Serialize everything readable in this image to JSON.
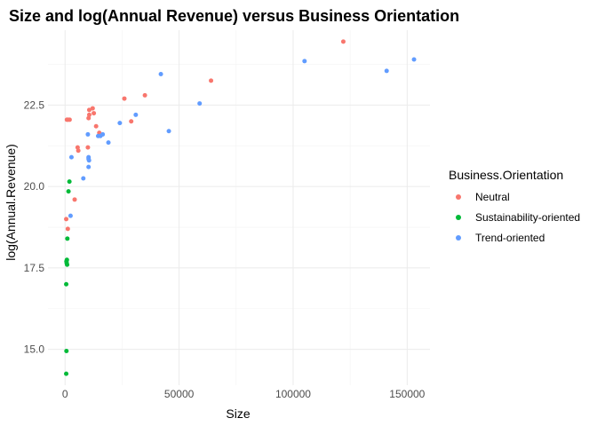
{
  "chart_data": {
    "type": "scatter",
    "title": "Size and log(Annual Revenue) versus Business Orientation",
    "xlabel": "Size",
    "ylabel": "log(Annual.Revenue)",
    "xlim": [
      -7500,
      160000
    ],
    "ylim": [
      13.9,
      24.8
    ],
    "x_ticks": [
      0,
      50000,
      100000,
      150000
    ],
    "x_tick_labels": [
      "0",
      "50000",
      "100000",
      "150000"
    ],
    "y_ticks": [
      15.0,
      17.5,
      20.0,
      22.5
    ],
    "y_tick_labels": [
      "15.0",
      "17.5",
      "20.0",
      "22.5"
    ],
    "grid": true,
    "legend": {
      "title": "Business.Orientation",
      "position": "right"
    },
    "series": [
      {
        "name": "Neutral",
        "color": "#F8766D",
        "points": [
          [
            800,
            22.05
          ],
          [
            1300,
            22.05
          ],
          [
            2000,
            22.05
          ],
          [
            500,
            19.0
          ],
          [
            1200,
            18.7
          ],
          [
            4200,
            19.6
          ],
          [
            5500,
            21.2
          ],
          [
            5800,
            21.1
          ],
          [
            10000,
            21.2
          ],
          [
            10300,
            22.1
          ],
          [
            10600,
            22.2
          ],
          [
            10600,
            22.35
          ],
          [
            12100,
            22.4
          ],
          [
            12600,
            22.25
          ],
          [
            13600,
            21.85
          ],
          [
            15000,
            21.65
          ],
          [
            26000,
            22.7
          ],
          [
            29000,
            22.0
          ],
          [
            35000,
            22.8
          ],
          [
            64000,
            23.25
          ],
          [
            122000,
            24.45
          ]
        ]
      },
      {
        "name": "Sustainability-oriented",
        "color": "#00BA38",
        "points": [
          [
            1900,
            20.15
          ],
          [
            1500,
            19.85
          ],
          [
            1000,
            18.4
          ],
          [
            800,
            17.75
          ],
          [
            600,
            17.7
          ],
          [
            700,
            17.65
          ],
          [
            900,
            17.6
          ],
          [
            500,
            17.0
          ],
          [
            600,
            14.95
          ],
          [
            500,
            14.25
          ]
        ]
      },
      {
        "name": "Trend-oriented",
        "color": "#619CFF",
        "points": [
          [
            2800,
            20.9
          ],
          [
            2400,
            19.1
          ],
          [
            8000,
            20.25
          ],
          [
            10000,
            21.6
          ],
          [
            10300,
            20.9
          ],
          [
            10300,
            20.85
          ],
          [
            10500,
            20.8
          ],
          [
            10300,
            20.6
          ],
          [
            14500,
            21.55
          ],
          [
            15500,
            21.55
          ],
          [
            16500,
            21.6
          ],
          [
            19000,
            21.35
          ],
          [
            24000,
            21.95
          ],
          [
            31000,
            22.2
          ],
          [
            42000,
            23.45
          ],
          [
            45500,
            21.7
          ],
          [
            59000,
            22.55
          ],
          [
            105000,
            23.85
          ],
          [
            141000,
            23.55
          ],
          [
            153000,
            23.9
          ]
        ]
      }
    ]
  }
}
